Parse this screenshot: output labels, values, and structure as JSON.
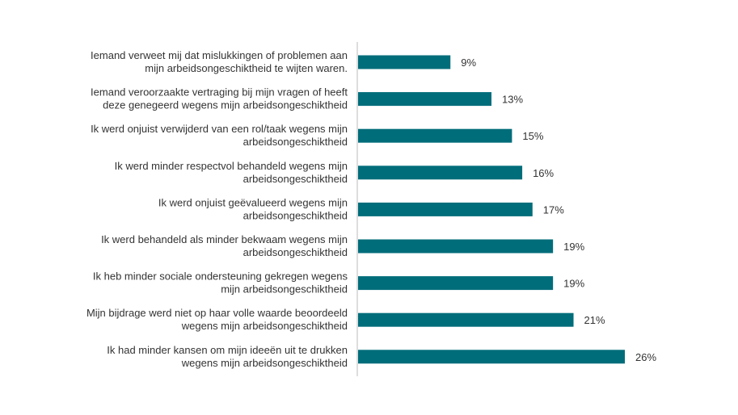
{
  "colors": {
    "bar": "#006d7a",
    "axis": "#bbbbbb",
    "text": "#333333"
  },
  "chart_data": {
    "type": "bar",
    "orientation": "horizontal",
    "categories": [
      [
        "Iemand verweet mij dat mislukkingen of problemen aan",
        "mijn arbeidsongeschiktheid te wijten waren."
      ],
      [
        "Iemand veroorzaakte vertraging bij mijn vragen of heeft",
        "deze genegeerd wegens mijn arbeidsongeschiktheid"
      ],
      [
        "Ik werd onjuist verwijderd van een rol/taak wegens mijn",
        "arbeidsongeschiktheid"
      ],
      [
        "Ik werd minder respectvol behandeld wegens mijn",
        "arbeidsongeschiktheid"
      ],
      [
        "Ik werd onjuist geëvalueerd wegens mijn",
        "arbeidsongeschiktheid"
      ],
      [
        "Ik werd behandeld als minder bekwaam wegens mijn",
        "arbeidsongeschiktheid"
      ],
      [
        "Ik heb minder sociale ondersteuning gekregen wegens",
        "mijn arbeidsongeschiktheid"
      ],
      [
        "Mijn bijdrage werd niet op haar volle waarde beoordeeld",
        "wegens mijn arbeidsongeschiktheid"
      ],
      [
        "Ik had minder kansen om mijn ideeën uit te drukken",
        "wegens mijn arbeidsongeschiktheid"
      ]
    ],
    "values": [
      9,
      13,
      15,
      16,
      17,
      19,
      19,
      21,
      26
    ],
    "value_labels": [
      "9%",
      "13%",
      "15%",
      "16%",
      "17%",
      "19%",
      "19%",
      "21%",
      "26%"
    ],
    "unit": "%",
    "xlim": [
      0,
      26
    ],
    "grid": false,
    "legend": "none"
  }
}
